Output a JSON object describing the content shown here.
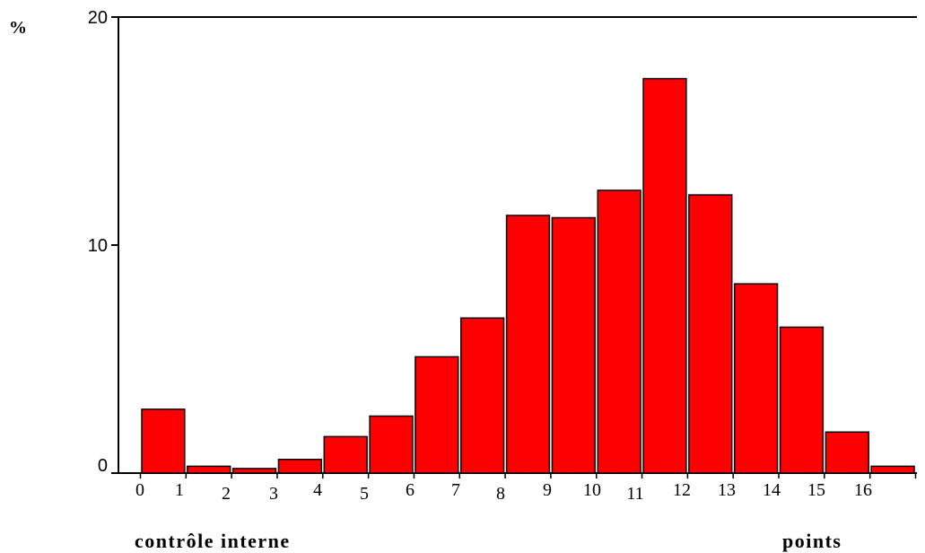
{
  "chart_data": {
    "type": "bar",
    "title": "",
    "ylabel": "%",
    "xlabel_left": "contrôle interne",
    "xlabel_right": "points",
    "ylim": [
      0,
      20
    ],
    "yticks": [
      0,
      10,
      20
    ],
    "categories": [
      "0",
      "1",
      "2",
      "3",
      "4",
      "5",
      "6",
      "7",
      "8",
      "9",
      "10",
      "11",
      "12",
      "13",
      "14",
      "15",
      "16"
    ],
    "xtick_labels": [
      "0",
      "1",
      "2",
      "3",
      "4",
      "5",
      "6",
      "7",
      "8",
      "9",
      "10",
      "11",
      "12",
      "13",
      "14",
      "15",
      "16"
    ],
    "values": [
      2.8,
      0.3,
      0.2,
      0.6,
      1.6,
      2.5,
      5.1,
      6.8,
      11.3,
      11.2,
      12.4,
      17.3,
      12.2,
      8.3,
      6.4,
      1.8,
      0.3
    ],
    "bar_color": "#ff0000",
    "grid": false
  }
}
